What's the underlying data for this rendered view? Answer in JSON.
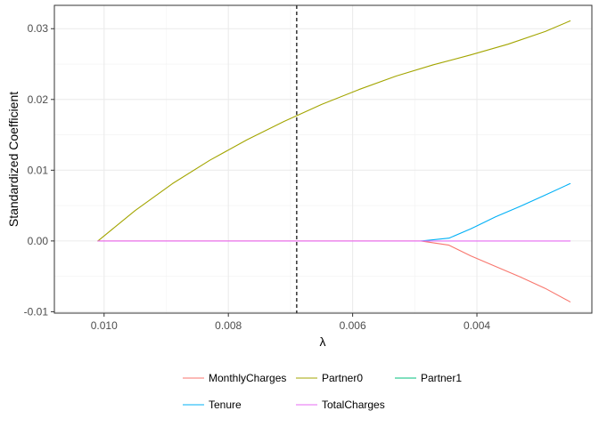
{
  "chart_data": {
    "type": "line",
    "xlabel": "λ",
    "ylabel": "Standardized Coefficient",
    "x_reversed": true,
    "xlim": [
      0.0108,
      0.00215
    ],
    "ylim": [
      -0.0102,
      0.0333
    ],
    "x_ticks": [
      {
        "value": 0.01,
        "label": "0.010"
      },
      {
        "value": 0.008,
        "label": "0.008"
      },
      {
        "value": 0.006,
        "label": "0.006"
      },
      {
        "value": 0.004,
        "label": "0.004"
      }
    ],
    "y_ticks": [
      {
        "value": -0.01,
        "label": "-0.01"
      },
      {
        "value": 0.0,
        "label": "0.00"
      },
      {
        "value": 0.01,
        "label": "0.01"
      },
      {
        "value": 0.02,
        "label": "0.02"
      },
      {
        "value": 0.03,
        "label": "0.03"
      }
    ],
    "grid": true,
    "legend_position": "bottom",
    "vline": {
      "x": 0.0069,
      "style": "dashed",
      "color": "#000000"
    },
    "series": [
      {
        "name": "MonthlyCharges",
        "color": "#F8766D",
        "x": [
          0.0101,
          0.0049,
          0.00445,
          0.0041,
          0.0037,
          0.0033,
          0.0029,
          0.0025
        ],
        "y": [
          0,
          0,
          -0.0006,
          -0.0021,
          -0.0036,
          -0.0051,
          -0.0067,
          -0.0086
        ]
      },
      {
        "name": "Partner0",
        "color": "#A3A500",
        "x": [
          0.0101,
          0.0095,
          0.0089,
          0.0083,
          0.0077,
          0.0071,
          0.0065,
          0.0059,
          0.0053,
          0.0047,
          0.0041,
          0.0035,
          0.0029,
          0.0025
        ],
        "y": [
          0,
          0.0043,
          0.0081,
          0.0114,
          0.0143,
          0.0169,
          0.0193,
          0.0214,
          0.0233,
          0.0249,
          0.0263,
          0.0278,
          0.0296,
          0.0311
        ]
      },
      {
        "name": "Partner1",
        "color": "#00BF7D",
        "x": [],
        "y": []
      },
      {
        "name": "Tenure",
        "color": "#00B0F6",
        "x": [
          0.0049,
          0.00445,
          0.0041,
          0.0037,
          0.0033,
          0.0029,
          0.0025
        ],
        "y": [
          0,
          0.0004,
          0.0017,
          0.0034,
          0.0049,
          0.0065,
          0.0081
        ]
      },
      {
        "name": "TotalCharges",
        "color": "#E76BF3",
        "x": [
          0.0101,
          0.0025
        ],
        "y": [
          0,
          0
        ]
      }
    ]
  },
  "legend": {
    "items": [
      {
        "label": "MonthlyCharges",
        "color": "#F8766D"
      },
      {
        "label": "Partner0",
        "color": "#A3A500"
      },
      {
        "label": "Partner1",
        "color": "#00BF7D"
      },
      {
        "label": "Tenure",
        "color": "#00B0F6"
      },
      {
        "label": "TotalCharges",
        "color": "#E76BF3"
      }
    ]
  }
}
